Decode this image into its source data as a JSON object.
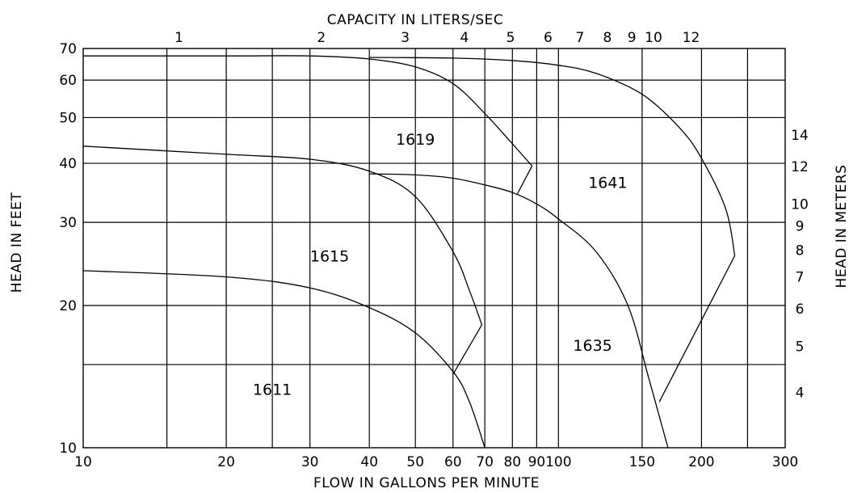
{
  "chart_data": {
    "type": "line",
    "title": "",
    "xlabel": "FLOW IN GALLONS PER MINUTE",
    "ylabel": "HEAD IN FEET",
    "x2label": "CAPACITY IN LITERS/SEC",
    "y2label": "HEAD IN METERS",
    "x_scale": "log",
    "y_scale": "log",
    "xlim": [
      10,
      300
    ],
    "ylim": [
      10,
      70
    ],
    "grid": true,
    "x_ticks": [
      {
        "value": 10,
        "label": "10"
      },
      {
        "value": 20,
        "label": "20"
      },
      {
        "value": 30,
        "label": "30"
      },
      {
        "value": 40,
        "label": "40"
      },
      {
        "value": 50,
        "label": "50"
      },
      {
        "value": 60,
        "label": "60"
      },
      {
        "value": 70,
        "label": "70"
      },
      {
        "value": 80,
        "label": "80"
      },
      {
        "value": 90,
        "label": "90"
      },
      {
        "value": 100,
        "label": "100"
      },
      {
        "value": 150,
        "label": "150"
      },
      {
        "value": 200,
        "label": "200"
      },
      {
        "value": 300,
        "label": "300"
      }
    ],
    "x_gridlines": [
      15,
      20,
      25,
      30,
      40,
      50,
      60,
      70,
      80,
      90,
      100,
      150,
      200,
      250
    ],
    "y_ticks": [
      {
        "value": 10,
        "label": "10"
      },
      {
        "value": 20,
        "label": "20"
      },
      {
        "value": 30,
        "label": "30"
      },
      {
        "value": 40,
        "label": "40"
      },
      {
        "value": 50,
        "label": "50"
      },
      {
        "value": 60,
        "label": "60"
      },
      {
        "value": 70,
        "label": "70"
      }
    ],
    "y_gridlines": [
      15,
      20,
      30,
      40,
      50,
      60
    ],
    "top_ticks": [
      {
        "gpm": 15.9,
        "label": "1"
      },
      {
        "gpm": 31.7,
        "label": "2"
      },
      {
        "gpm": 47.6,
        "label": "3"
      },
      {
        "gpm": 63.4,
        "label": "4"
      },
      {
        "gpm": 79.3,
        "label": "5"
      },
      {
        "gpm": 95.1,
        "label": "6"
      },
      {
        "gpm": 111,
        "label": "7"
      },
      {
        "gpm": 126.8,
        "label": "8"
      },
      {
        "gpm": 142.7,
        "label": "9"
      },
      {
        "gpm": 158.5,
        "label": "10"
      },
      {
        "gpm": 190.2,
        "label": "12"
      }
    ],
    "right_ticks": [
      {
        "ft": 45.9,
        "label": "14"
      },
      {
        "ft": 39.4,
        "label": "12"
      },
      {
        "ft": 32.8,
        "label": "10"
      },
      {
        "ft": 29.5,
        "label": "9"
      },
      {
        "ft": 26.2,
        "label": "8"
      },
      {
        "ft": 23.0,
        "label": "7"
      },
      {
        "ft": 19.7,
        "label": "6"
      },
      {
        "ft": 16.4,
        "label": "5"
      },
      {
        "ft": 13.1,
        "label": "4"
      }
    ],
    "series": [
      {
        "name": "1611",
        "label_at": [
          25,
          13.3
        ],
        "points": [
          [
            10,
            23.7
          ],
          [
            20,
            23
          ],
          [
            30,
            21.8
          ],
          [
            40,
            19.8
          ],
          [
            50,
            17.5
          ],
          [
            60,
            14.5
          ],
          [
            65,
            12.5
          ],
          [
            70,
            10
          ]
        ],
        "trim_line": [
          [
            60,
            14.3
          ],
          [
            69,
            18.2
          ]
        ]
      },
      {
        "name": "1615",
        "label_at": [
          33,
          25.5
        ],
        "points": [
          [
            10,
            43.5
          ],
          [
            20,
            41.8
          ],
          [
            30,
            40.8
          ],
          [
            40,
            38.5
          ],
          [
            50,
            34
          ],
          [
            60,
            26
          ],
          [
            65,
            21.5
          ],
          [
            69,
            18.2
          ]
        ]
      },
      {
        "name": "1619",
        "label_at": [
          50,
          45
        ],
        "points": [
          [
            10,
            67.5
          ],
          [
            20,
            67.5
          ],
          [
            30,
            67.5
          ],
          [
            40,
            66.5
          ],
          [
            50,
            64
          ],
          [
            60,
            59
          ],
          [
            70,
            51
          ],
          [
            80,
            44
          ],
          [
            88,
            39.5
          ]
        ],
        "trim_line": [
          [
            88,
            39.5
          ],
          [
            82,
            34.5
          ]
        ]
      },
      {
        "name": "1635",
        "label_at": [
          118,
          16.5
        ],
        "points": [
          [
            40,
            38
          ],
          [
            50,
            37.8
          ],
          [
            60,
            37.2
          ],
          [
            70,
            36
          ],
          [
            80,
            34.7
          ],
          [
            90,
            32.8
          ],
          [
            100,
            30.5
          ],
          [
            120,
            26
          ],
          [
            140,
            20
          ],
          [
            155,
            14
          ],
          [
            170,
            10
          ]
        ]
      },
      {
        "name": "1641",
        "label_at": [
          127,
          36.5
        ],
        "points": [
          [
            40,
            67
          ],
          [
            60,
            66.8
          ],
          [
            80,
            66
          ],
          [
            100,
            64.5
          ],
          [
            120,
            62
          ],
          [
            150,
            56
          ],
          [
            180,
            47.5
          ],
          [
            200,
            41
          ],
          [
            225,
            32
          ],
          [
            235,
            25.5
          ]
        ],
        "trim_line": [
          [
            235,
            25.5
          ],
          [
            163,
            12.5
          ]
        ]
      }
    ]
  }
}
